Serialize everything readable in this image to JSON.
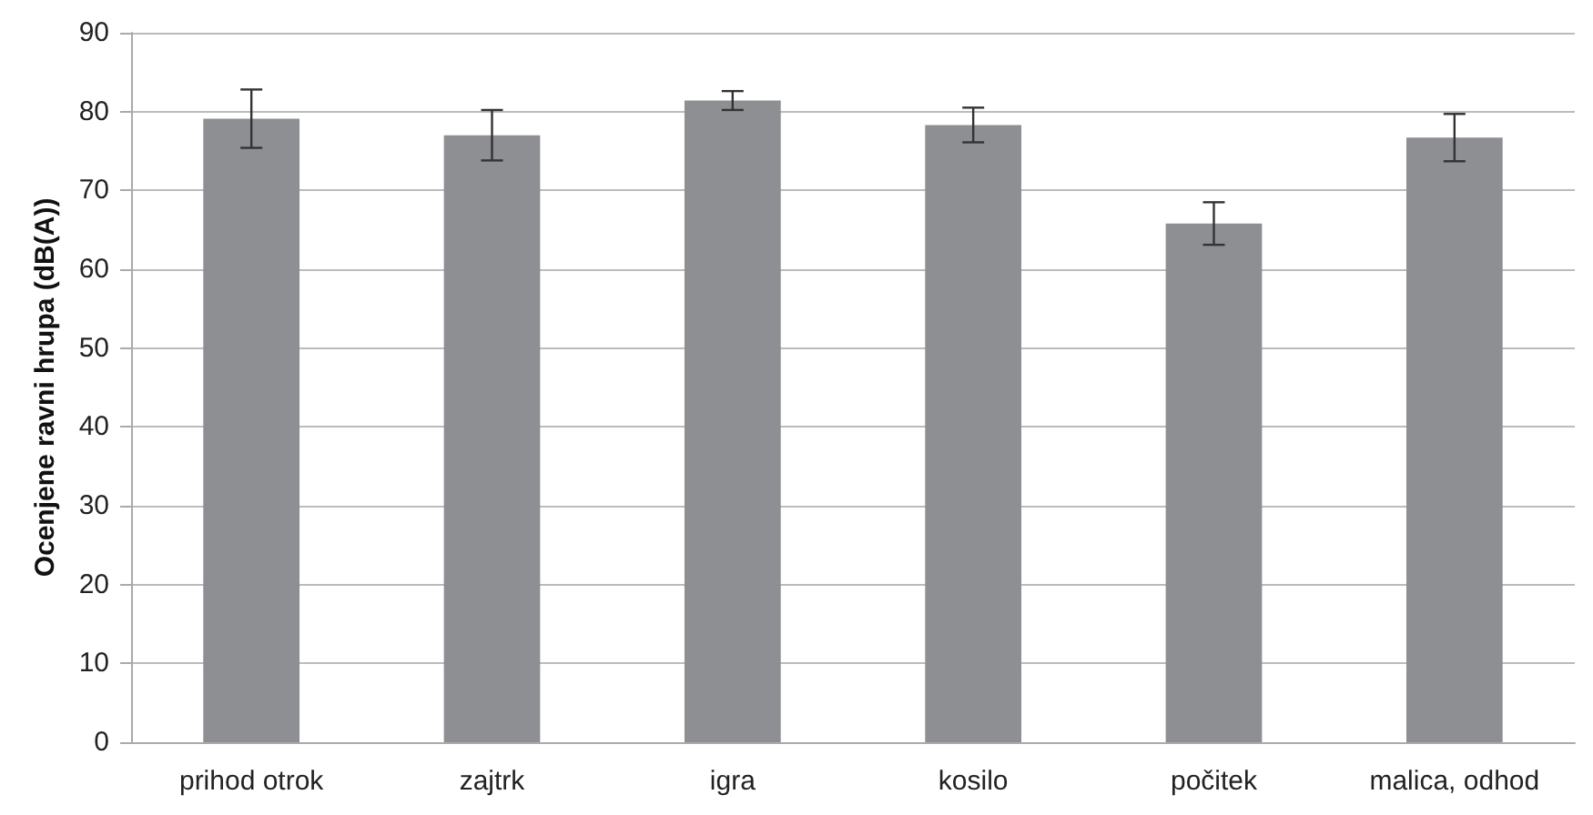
{
  "chart_data": {
    "type": "bar",
    "ylabel": "Ocenjene ravni hrupa (dB(A))",
    "categories": [
      "prihod otrok",
      "zajtrk",
      "igra",
      "kosilo",
      "počitek",
      "malica, odhod"
    ],
    "values": [
      79.1,
      77.0,
      81.4,
      78.3,
      65.8,
      76.7
    ],
    "errors": [
      3.7,
      3.2,
      1.2,
      2.2,
      2.7,
      3.0
    ],
    "color": "#8e8f93",
    "ylim": [
      0,
      90
    ],
    "yticks": [
      0,
      10,
      20,
      30,
      40,
      50,
      60,
      70,
      80,
      90
    ],
    "grid": "y"
  }
}
